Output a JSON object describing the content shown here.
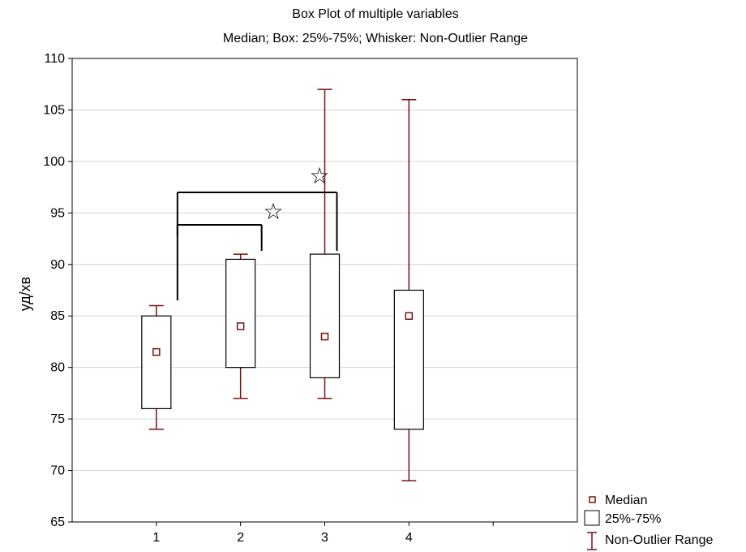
{
  "chart_data": {
    "type": "boxplot",
    "title": "Box Plot of multiple variables",
    "subtitle": "Median; Box: 25%-75%; Whisker: Non-Outlier Range",
    "xlabel": "",
    "ylabel": "уд/хв",
    "ylim": [
      65,
      110
    ],
    "yticks": [
      65,
      70,
      75,
      80,
      85,
      90,
      95,
      100,
      105,
      110
    ],
    "xlim": [
      0,
      6
    ],
    "categories": [
      "1",
      "2",
      "3",
      "4"
    ],
    "grid": true,
    "legend_position": "bottom-right",
    "series_color": "#7a1010",
    "boxes": [
      {
        "category": "1",
        "min": 74,
        "q1": 76,
        "median": 81.5,
        "q3": 85,
        "max": 86
      },
      {
        "category": "2",
        "min": 77,
        "q1": 80,
        "median": 84,
        "q3": 90.5,
        "max": 91
      },
      {
        "category": "3",
        "min": 77,
        "q1": 79,
        "median": 83,
        "q3": 91,
        "max": 107
      },
      {
        "category": "4",
        "min": 69,
        "q1": 74,
        "median": 85,
        "q3": 87.5,
        "max": 106
      }
    ],
    "legend": {
      "median": "Median",
      "box": "25%-75%",
      "whisker": "Non-Outlier Range"
    },
    "annotations": [
      {
        "type": "significance-bracket",
        "from": "1",
        "to": "2",
        "symbol": "☆"
      },
      {
        "type": "significance-bracket",
        "from": "1",
        "to": "3",
        "symbol": "☆"
      }
    ]
  }
}
